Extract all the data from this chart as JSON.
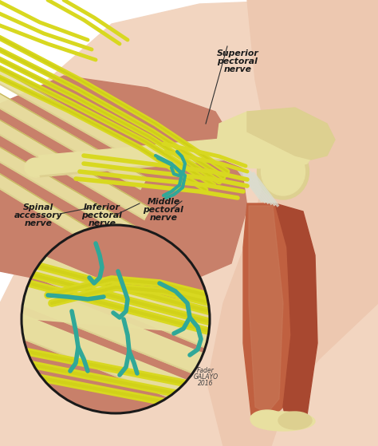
{
  "figsize": [
    4.74,
    5.59
  ],
  "dpi": 100,
  "bg_color": "#ffffff",
  "skin_light": "#f2d5c0",
  "skin_body": "#edc8b0",
  "skin_shoulder": "#e8c0a8",
  "pec_muscle": "#c8806a",
  "pec_muscle2": "#b87060",
  "bone_main": "#ddd090",
  "bone_light": "#e8e0a0",
  "bone_dark": "#c8b860",
  "muscle_red1": "#c06040",
  "muscle_red2": "#a84830",
  "muscle_orange": "#d07850",
  "muscle_light2": "#c87858",
  "nerve_yellow": "#d8d820",
  "nerve_yellow2": "#c8c810",
  "nerve_teal": "#30a898",
  "nerve_teal2": "#208878",
  "nerve_white": "#d8ddd0",
  "circle_color": "#1a1a1a",
  "label_color": "#1a1a1a",
  "line_color": "#303030",
  "credit_color": "#404040",
  "labels": {
    "superior_pectoral": [
      "Superior",
      "pectoral",
      "nerve"
    ],
    "spinal_accessory": [
      "Spinal",
      "accessory",
      "nerve"
    ],
    "inferior_pectoral": [
      "Inferior",
      "pectoral",
      "nerve"
    ],
    "middle_pectoral": [
      "Middle",
      "pectoral",
      "nerve"
    ]
  },
  "credit": [
    "Fader",
    "GALAYO",
    "2016"
  ]
}
